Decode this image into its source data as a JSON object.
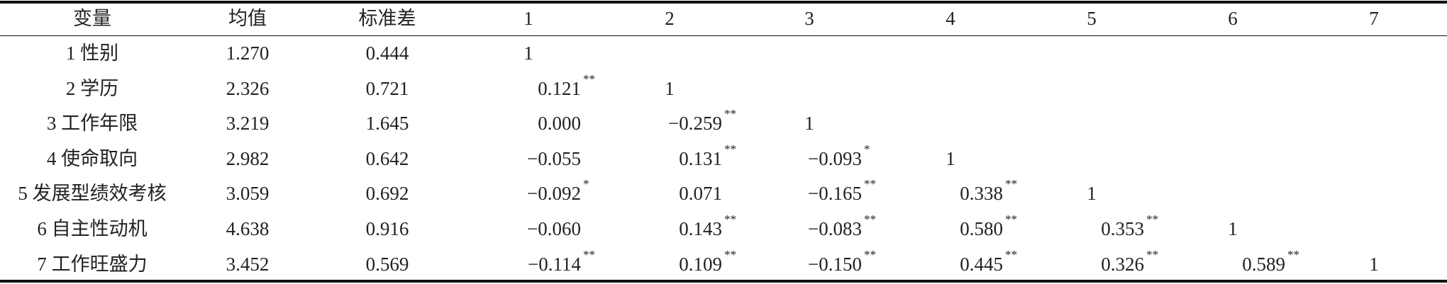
{
  "table": {
    "header": [
      "变量",
      "均值",
      "标准差",
      "1",
      "2",
      "3",
      "4",
      "5",
      "6",
      "7"
    ],
    "rows": [
      {
        "label": "1 性别",
        "mean": "1.270",
        "sd": "0.444",
        "r": [
          {
            "v": "1"
          }
        ]
      },
      {
        "label": "2 学历",
        "mean": "2.326",
        "sd": "0.721",
        "r": [
          {
            "v": "0.121",
            "s": "**"
          },
          {
            "v": "1"
          }
        ]
      },
      {
        "label": "3 工作年限",
        "mean": "3.219",
        "sd": "1.645",
        "r": [
          {
            "v": "0.000"
          },
          {
            "v": "−0.259",
            "s": "**"
          },
          {
            "v": "1"
          }
        ]
      },
      {
        "label": "4 使命取向",
        "mean": "2.982",
        "sd": "0.642",
        "r": [
          {
            "v": "−0.055"
          },
          {
            "v": "0.131",
            "s": "**"
          },
          {
            "v": "−0.093",
            "s": "*"
          },
          {
            "v": "1"
          }
        ]
      },
      {
        "label": "5 发展型绩效考核",
        "mean": "3.059",
        "sd": "0.692",
        "r": [
          {
            "v": "−0.092",
            "s": "*"
          },
          {
            "v": "0.071"
          },
          {
            "v": "−0.165",
            "s": "**"
          },
          {
            "v": "0.338",
            "s": "**"
          },
          {
            "v": "1"
          }
        ]
      },
      {
        "label": "6 自主性动机",
        "mean": "4.638",
        "sd": "0.916",
        "r": [
          {
            "v": "−0.060"
          },
          {
            "v": "0.143",
            "s": "**"
          },
          {
            "v": "−0.083",
            "s": "**"
          },
          {
            "v": "0.580",
            "s": "**"
          },
          {
            "v": "0.353",
            "s": "**"
          },
          {
            "v": "1"
          }
        ]
      },
      {
        "label": "7 工作旺盛力",
        "mean": "3.452",
        "sd": "0.569",
        "r": [
          {
            "v": "−0.114",
            "s": "**"
          },
          {
            "v": "0.109",
            "s": "**"
          },
          {
            "v": "−0.150",
            "s": "**"
          },
          {
            "v": "0.445",
            "s": "**"
          },
          {
            "v": "0.326",
            "s": "**"
          },
          {
            "v": "0.589",
            "s": "**"
          },
          {
            "v": "1"
          }
        ]
      }
    ]
  }
}
